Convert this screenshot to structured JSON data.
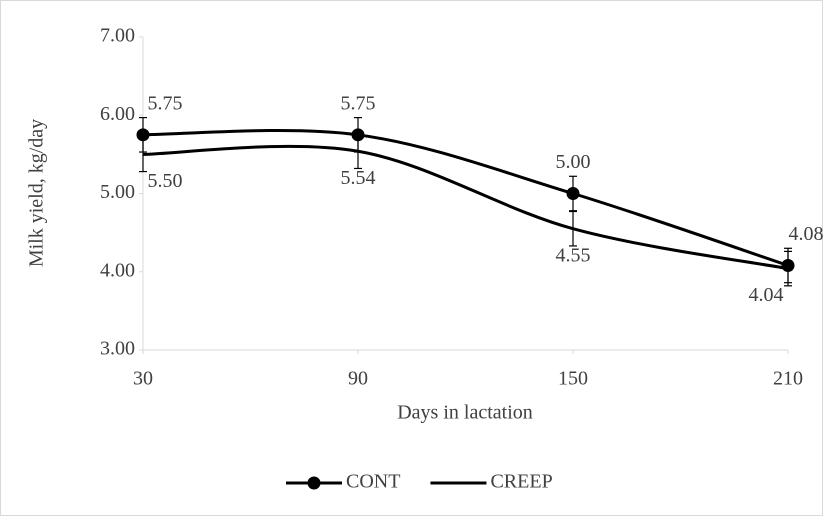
{
  "chart_data": {
    "type": "line",
    "x_label": "Days in lactation",
    "y_label": "Milk yield, kg/day",
    "x": [
      30,
      90,
      150,
      210
    ],
    "xlim": [
      30,
      210
    ],
    "xticks": [
      30,
      90,
      150,
      210
    ],
    "ylim": [
      3,
      7
    ],
    "yticks": [
      {
        "value": 3,
        "label": "3.00"
      },
      {
        "value": 4,
        "label": "4.00"
      },
      {
        "value": 5,
        "label": "5.00"
      },
      {
        "value": 6,
        "label": "6.00"
      },
      {
        "value": 7,
        "label": "7.00"
      }
    ],
    "smooth": true,
    "legend": "bottom",
    "series": [
      {
        "name": "CONT",
        "color": "#000000",
        "marker": "circle",
        "label_position": "above",
        "values": [
          5.75,
          5.75,
          5.0,
          4.08
        ],
        "value_labels": [
          "5.75",
          "5.75",
          "5.00",
          "4.08"
        ],
        "errors": [
          0.22,
          0.22,
          0.22,
          0.22
        ]
      },
      {
        "name": "CREEP",
        "color": "#000000",
        "marker": "none",
        "label_position": "below",
        "values": [
          5.5,
          5.54,
          4.55,
          4.04
        ],
        "value_labels": [
          "5.50",
          "5.54",
          "4.55",
          "4.04"
        ],
        "errors": [
          0.22,
          0.22,
          0.22,
          0.22
        ]
      }
    ]
  }
}
